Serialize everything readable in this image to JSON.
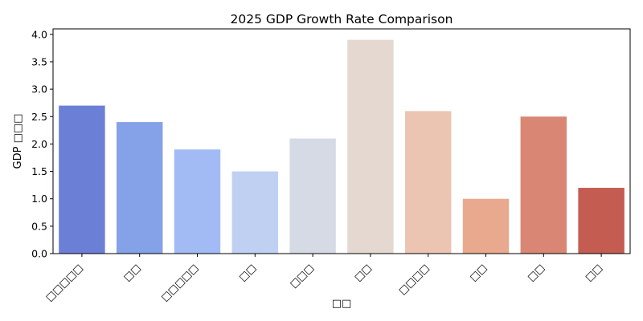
{
  "chart_data": {
    "type": "bar",
    "title": "2025 GDP Growth Rate Comparison",
    "xlabel": "□□",
    "ylabel": "GDP □□□",
    "categories": [
      "□□□□□",
      "□□",
      "□□□□□",
      "□□",
      "□□□",
      "□□",
      "□□□□",
      "□□",
      "□□",
      "□□"
    ],
    "values": [
      2.7,
      2.4,
      1.9,
      1.5,
      2.1,
      3.9,
      2.6,
      1.0,
      2.5,
      1.2
    ],
    "ylim": [
      0,
      4.1
    ],
    "yticks": [
      0.0,
      0.5,
      1.0,
      1.5,
      2.0,
      2.5,
      3.0,
      3.5,
      4.0
    ],
    "ytick_labels": [
      "0.0",
      "0.5",
      "1.0",
      "1.5",
      "2.0",
      "2.5",
      "3.0",
      "3.5",
      "4.0"
    ],
    "colors": [
      "#6b7fd7",
      "#85a1e8",
      "#a3bbf5",
      "#bfd0f3",
      "#d5dae5",
      "#e5d8d1",
      "#ecc5b2",
      "#e8a98f",
      "#d98774",
      "#c45c52"
    ],
    "grid": false,
    "legend": "none"
  }
}
